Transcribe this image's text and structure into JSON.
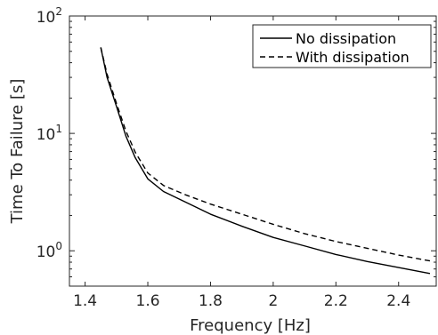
{
  "chart_data": {
    "type": "line",
    "title": "",
    "xlabel": "Frequency [Hz]",
    "ylabel": "Time To Failure [s]",
    "xscale": "linear",
    "yscale": "log",
    "xlim": [
      1.35,
      2.52
    ],
    "ylim": [
      0.5,
      100
    ],
    "x_ticks": [
      1.4,
      1.6,
      1.8,
      2.0,
      2.2,
      2.4
    ],
    "x_tick_labels": [
      "1.4",
      "1.6",
      "1.8",
      "2",
      "2.2",
      "2.4"
    ],
    "y_ticks": [
      1,
      10,
      100
    ],
    "y_tick_labels": [
      {
        "base": "10",
        "exp": "0"
      },
      {
        "base": "10",
        "exp": "1"
      },
      {
        "base": "10",
        "exp": "2"
      }
    ],
    "grid": false,
    "legend_position": "top-right",
    "series": [
      {
        "name": "No dissipation",
        "style": "solid",
        "color": "#000000",
        "x": [
          1.45,
          1.47,
          1.5,
          1.53,
          1.56,
          1.6,
          1.65,
          1.72,
          1.8,
          1.9,
          2.0,
          2.1,
          2.2,
          2.3,
          2.4,
          2.5
        ],
        "y": [
          54,
          30,
          17,
          9.5,
          6.2,
          4.1,
          3.2,
          2.6,
          2.05,
          1.62,
          1.3,
          1.1,
          0.93,
          0.81,
          0.72,
          0.64
        ]
      },
      {
        "name": "With dissipation",
        "style": "dashed",
        "color": "#000000",
        "x": [
          1.45,
          1.47,
          1.5,
          1.53,
          1.56,
          1.6,
          1.65,
          1.72,
          1.8,
          1.9,
          2.0,
          2.1,
          2.2,
          2.3,
          2.4,
          2.5
        ],
        "y": [
          54,
          32,
          18,
          10.5,
          6.9,
          4.6,
          3.6,
          3.0,
          2.5,
          2.05,
          1.68,
          1.4,
          1.2,
          1.05,
          0.92,
          0.82
        ]
      }
    ]
  }
}
